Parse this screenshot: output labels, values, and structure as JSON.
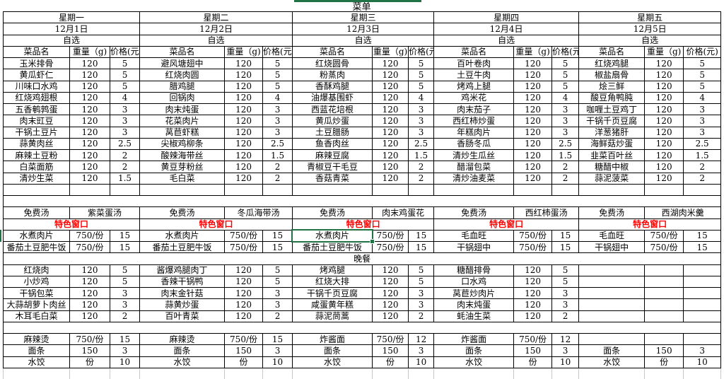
{
  "title": "菜单",
  "dinner_banner": "晚餐",
  "colors": {
    "selection_green": "#217346",
    "special_red": "#FF0000",
    "grid_border": "#000000",
    "faint_gridline": "#C9C9C9"
  },
  "days": [
    {
      "week": "星期一",
      "date": "12月1日",
      "meal_type": "自选",
      "headers": [
        "菜品名",
        "重量（g)",
        "价格(元)"
      ],
      "dishes": [
        [
          "玉米排骨",
          "120",
          "5"
        ],
        [
          "黄瓜虾仁",
          "120",
          "5"
        ],
        [
          "川味口水鸡",
          "120",
          "5"
        ],
        [
          "红烧鸡翅根",
          "120",
          "4"
        ],
        [
          "五香鹌鹑蛋",
          "120",
          "3"
        ],
        [
          "肉末豇豆",
          "120",
          "3"
        ],
        [
          "干锅土豆片",
          "120",
          "3"
        ],
        [
          "蒜黄肉丝",
          "120",
          "2.5"
        ],
        [
          "麻辣土豆粉",
          "120",
          "2"
        ],
        [
          "白菜面筋",
          "120",
          "2"
        ],
        [
          "清炒生菜",
          "120",
          "1.5"
        ]
      ],
      "soup_label": "免费汤",
      "soup_name": "紫菜蛋汤",
      "special_banner": "特色窗口",
      "specials": [
        [
          "水煮肉片",
          "750/份",
          "15"
        ],
        [
          "番茄土豆肥牛饭",
          "750/份",
          "15"
        ]
      ],
      "dinner": [
        [
          "红烧肉",
          "120",
          "5"
        ],
        [
          "小炒鸡",
          "120",
          "5"
        ],
        [
          "干锅包菜",
          "120",
          "3"
        ],
        [
          "大蒜胡萝卜肉丝",
          "120",
          "3"
        ],
        [
          "木耳毛白菜",
          "120",
          "2"
        ]
      ],
      "noodles": [
        [
          "麻辣烫",
          "750/份",
          "15"
        ],
        [
          "面条",
          "150",
          "3"
        ],
        [
          "水饺",
          "份",
          "10"
        ]
      ]
    },
    {
      "week": "星期二",
      "date": "12月2日",
      "meal_type": "自选",
      "headers": [
        "菜品名",
        "重量（g)",
        "价格(元)"
      ],
      "dishes": [
        [
          "避风塘翅中",
          "120",
          "5"
        ],
        [
          "红烧肉圆",
          "120",
          "5"
        ],
        [
          "腊鸡腿",
          "120",
          "5"
        ],
        [
          "回锅肉",
          "120",
          "4"
        ],
        [
          "肉末炖蛋",
          "120",
          "3"
        ],
        [
          "花菜肉片",
          "120",
          "3"
        ],
        [
          "莴苣虾糕",
          "120",
          "3"
        ],
        [
          "尖椒鸡柳条",
          "120",
          "2.5"
        ],
        [
          "酸辣海带丝",
          "120",
          "1.5"
        ],
        [
          "黄豆芽粉丝",
          "120",
          "2"
        ],
        [
          "毛白菜",
          "120",
          "2"
        ]
      ],
      "soup_label": "免费汤",
      "soup_name": "冬瓜海带汤",
      "special_banner": "特色窗口",
      "specials": [
        [
          "水煮肉片",
          "750/份",
          "15"
        ],
        [
          "番茄土豆肥牛饭",
          "750/份",
          "15"
        ]
      ],
      "dinner": [
        [
          "酱爆鸡腿肉丁",
          "120",
          "5"
        ],
        [
          "香辣干锅鸭",
          "120",
          "5"
        ],
        [
          "肉末金针菇",
          "120",
          "3"
        ],
        [
          "蒜黄炒蛋",
          "120",
          "3"
        ],
        [
          "百叶青菜",
          "120",
          "2"
        ]
      ],
      "noodles": [
        [
          "麻辣烫",
          "750/份",
          "15"
        ],
        [
          "面条",
          "150",
          "3"
        ],
        [
          "水饺",
          "份",
          "10"
        ]
      ]
    },
    {
      "week": "星期三",
      "date": "12月3日",
      "meal_type": "自选",
      "headers": [
        "菜品名",
        "重量（g)",
        "价格(元)"
      ],
      "dishes": [
        [
          "红烧圆骨",
          "120",
          "5"
        ],
        [
          "粉蒸肉",
          "120",
          "5"
        ],
        [
          "香酥鸡腿",
          "120",
          "5"
        ],
        [
          "油爆基围虾",
          "120",
          "4"
        ],
        [
          "西蓝花培根",
          "120",
          "3"
        ],
        [
          "黄瓜炒蛋",
          "120",
          "3"
        ],
        [
          "土豆腊肠",
          "120",
          "3"
        ],
        [
          "鱼香肉丝",
          "120",
          "2.5"
        ],
        [
          "麻辣豆腐",
          "120",
          "1.5"
        ],
        [
          "青椒豆干毛豆",
          "120",
          "2"
        ],
        [
          "香菇青菜",
          "120",
          "2"
        ]
      ],
      "soup_label": "免费汤",
      "soup_name": "肉末鸡蛋花",
      "special_banner": "特色窗口",
      "specials": [
        [
          "水煮肉片",
          "750/份",
          "15"
        ],
        [
          "番茄土豆肥牛饭",
          "750/份",
          "15"
        ]
      ],
      "dinner": [
        [
          "烤鸡腿",
          "120",
          "5"
        ],
        [
          "红烧大排",
          "120",
          "5"
        ],
        [
          "干锅千页豆腐",
          "120",
          "3"
        ],
        [
          "咸蛋黄年糕",
          "120",
          "3"
        ],
        [
          "蒜泥茼蒿",
          "120",
          "2"
        ]
      ],
      "noodles": [
        [
          "炸酱面",
          "750/份",
          "12"
        ],
        [
          "面条",
          "150",
          "3"
        ],
        [
          "水饺",
          "份",
          "10"
        ]
      ]
    },
    {
      "week": "星期四",
      "date": "12月4日",
      "meal_type": "自选",
      "headers": [
        "菜品名",
        "重量（g)",
        "价格(元)"
      ],
      "dishes": [
        [
          "百叶卷肉",
          "120",
          "5"
        ],
        [
          "土豆牛肉",
          "120",
          "5"
        ],
        [
          "烤鸡上腿",
          "120",
          "5"
        ],
        [
          "鸡米花",
          "120",
          "4"
        ],
        [
          "肉末茄子",
          "120",
          "3"
        ],
        [
          "西红柿炒蛋",
          "120",
          "3"
        ],
        [
          "年糕肉片",
          "120",
          "3"
        ],
        [
          "香肠冬瓜",
          "120",
          "2.5"
        ],
        [
          "清炒生瓜丝",
          "120",
          "1.5"
        ],
        [
          "醋溜包菜",
          "120",
          "2"
        ],
        [
          "清炒油麦菜",
          "120",
          "2"
        ]
      ],
      "soup_label": "免费汤",
      "soup_name": "西红柿蛋汤",
      "special_banner": "特色窗口",
      "specials": [
        [
          "毛血旺",
          "750/份",
          "15"
        ],
        [
          "干锅翅中",
          "750/份",
          "15"
        ]
      ],
      "dinner": [
        [
          "糖醋排骨",
          "120",
          "5"
        ],
        [
          "口水鸡",
          "120",
          "5"
        ],
        [
          "莴苣炒肉片",
          "120",
          "3"
        ],
        [
          "肉末炖蛋",
          "120",
          "3"
        ],
        [
          "蚝油生菜",
          "120",
          "2"
        ]
      ],
      "noodles": [
        [
          "炸酱面",
          "750/份",
          "12"
        ],
        [
          "面条",
          "150",
          "3"
        ],
        [
          "水饺",
          "份",
          "10"
        ]
      ]
    },
    {
      "week": "星期五",
      "date": "12月5日",
      "meal_type": "自选",
      "headers": [
        "菜品名",
        "重量（g)",
        "价格(元)"
      ],
      "dishes": [
        [
          "红烧鸡腿",
          "120",
          "5"
        ],
        [
          "椒盐扇骨",
          "120",
          "5"
        ],
        [
          "烩三鲜",
          "120",
          "5"
        ],
        [
          "酸豆角鸭肫",
          "120",
          "4"
        ],
        [
          "咖喱土豆鸡丁",
          "120",
          "3"
        ],
        [
          "干锅千页豆腐",
          "120",
          "3"
        ],
        [
          "洋葱猪肝",
          "120",
          "3"
        ],
        [
          "海鲜菇炒蛋",
          "120",
          "2.5"
        ],
        [
          "韭菜百叶丝",
          "120",
          "1.5"
        ],
        [
          "糖醋中椒",
          "120",
          "2"
        ],
        [
          "蒜泥菠菜",
          "120",
          "2"
        ]
      ],
      "soup_label": "免费汤",
      "soup_name": "西湖肉米羹",
      "special_banner": "特色窗口",
      "specials": [
        [
          "毛血旺",
          "750/份",
          "15"
        ],
        [
          "干锅翅中",
          "750/份",
          "15"
        ]
      ],
      "dinner": [
        [
          "",
          "",
          ""
        ],
        [
          "",
          "",
          ""
        ],
        [
          "",
          "",
          ""
        ],
        [
          "",
          "",
          ""
        ],
        [
          "",
          "",
          ""
        ]
      ],
      "noodles": [
        [
          "",
          "",
          ""
        ],
        [
          "面条",
          "150",
          "3"
        ],
        [
          "水饺",
          "份",
          "10"
        ]
      ]
    }
  ]
}
